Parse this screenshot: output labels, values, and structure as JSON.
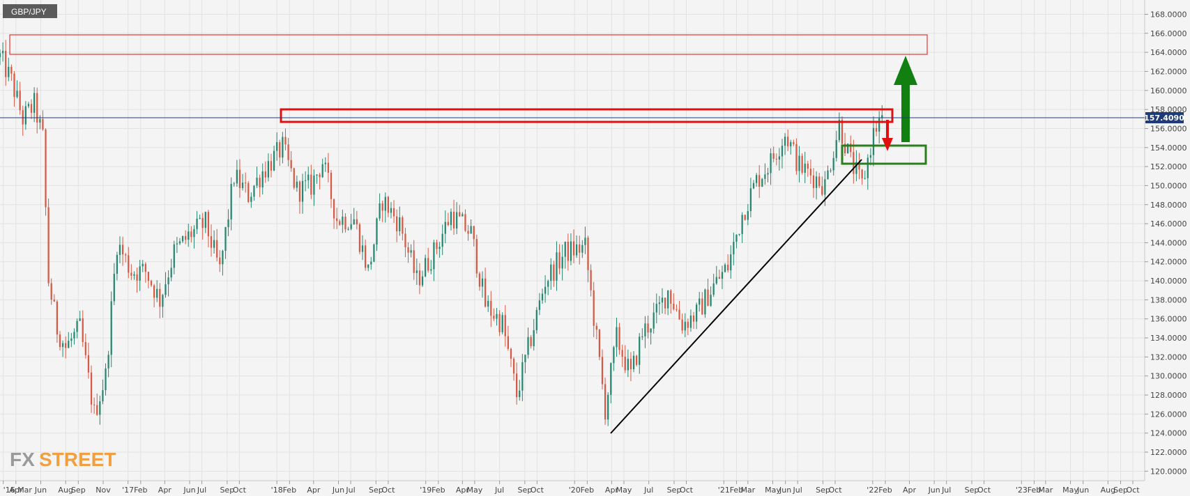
{
  "symbol_label": "GBP/JPY",
  "logo": {
    "fx": "FX",
    "street": "STREET"
  },
  "price_tag": "157.4090",
  "colors": {
    "up": "#26866f",
    "down": "#d45a45",
    "bg": "#f4f4f4",
    "grid": "#e2e2e2",
    "resistance": "#e01010",
    "support": "#2a7e1e",
    "arrow_up": "#128010",
    "arrow_down": "#e01010",
    "trendline": "#000000",
    "price_line": "#1f3b7a"
  },
  "chart_data": {
    "type": "candlestick",
    "y_axis": {
      "side": "right",
      "range": [
        119.0,
        169.5
      ],
      "ticks": [
        120,
        122,
        124,
        126,
        128,
        130,
        132,
        134,
        136,
        138,
        140,
        142,
        144,
        146,
        148,
        150,
        152,
        154,
        156,
        158,
        160,
        162,
        164,
        166,
        168
      ],
      "tick_format": "0.0000"
    },
    "x_axis": {
      "range": [
        "2016-02-22",
        "2023-10-30"
      ],
      "ticks": [
        {
          "date": "2016-03-01",
          "label": "'16 Mar"
        },
        {
          "date": "2016-04-01",
          "label": "Apr"
        },
        {
          "date": "2016-06-01",
          "label": "Jun"
        },
        {
          "date": "2016-08-01",
          "label": "Aug"
        },
        {
          "date": "2016-09-01",
          "label": "Sep"
        },
        {
          "date": "2016-11-01",
          "label": "Nov"
        },
        {
          "date": "2017-01-01",
          "label": "'17"
        },
        {
          "date": "2017-02-01",
          "label": "Feb"
        },
        {
          "date": "2017-04-01",
          "label": "Apr"
        },
        {
          "date": "2017-06-01",
          "label": "Jun"
        },
        {
          "date": "2017-07-01",
          "label": "Jul"
        },
        {
          "date": "2017-09-01",
          "label": "Sep"
        },
        {
          "date": "2017-10-01",
          "label": "Oct"
        },
        {
          "date": "2018-01-01",
          "label": "'18"
        },
        {
          "date": "2018-02-01",
          "label": "Feb"
        },
        {
          "date": "2018-04-01",
          "label": "Apr"
        },
        {
          "date": "2018-06-01",
          "label": "Jun"
        },
        {
          "date": "2018-07-01",
          "label": "Jul"
        },
        {
          "date": "2018-09-01",
          "label": "Sep"
        },
        {
          "date": "2018-10-01",
          "label": "Oct"
        },
        {
          "date": "2019-01-01",
          "label": "'19"
        },
        {
          "date": "2019-02-01",
          "label": "Feb"
        },
        {
          "date": "2019-04-01",
          "label": "Apr"
        },
        {
          "date": "2019-05-01",
          "label": "May"
        },
        {
          "date": "2019-07-01",
          "label": "Jul"
        },
        {
          "date": "2019-09-01",
          "label": "Sep"
        },
        {
          "date": "2019-10-01",
          "label": "Oct"
        },
        {
          "date": "2020-01-01",
          "label": "'20"
        },
        {
          "date": "2020-02-01",
          "label": "Feb"
        },
        {
          "date": "2020-04-01",
          "label": "Apr"
        },
        {
          "date": "2020-05-01",
          "label": "May"
        },
        {
          "date": "2020-07-01",
          "label": "Jul"
        },
        {
          "date": "2020-09-01",
          "label": "Sep"
        },
        {
          "date": "2020-10-01",
          "label": "Oct"
        },
        {
          "date": "2021-01-01",
          "label": "'21"
        },
        {
          "date": "2021-02-01",
          "label": "Feb"
        },
        {
          "date": "2021-03-01",
          "label": "Mar"
        },
        {
          "date": "2021-05-01",
          "label": "May"
        },
        {
          "date": "2021-06-01",
          "label": "Jun"
        },
        {
          "date": "2021-07-01",
          "label": "Jul"
        },
        {
          "date": "2021-09-01",
          "label": "Sep"
        },
        {
          "date": "2021-10-01",
          "label": "Oct"
        },
        {
          "date": "2022-01-01",
          "label": "'22"
        },
        {
          "date": "2022-02-01",
          "label": "Feb"
        },
        {
          "date": "2022-04-01",
          "label": "Apr"
        },
        {
          "date": "2022-06-01",
          "label": "Jun"
        },
        {
          "date": "2022-07-01",
          "label": "Jul"
        },
        {
          "date": "2022-09-01",
          "label": "Sep"
        },
        {
          "date": "2022-10-01",
          "label": "Oct"
        },
        {
          "date": "2023-01-01",
          "label": "'23"
        },
        {
          "date": "2023-02-01",
          "label": "Feb"
        },
        {
          "date": "2023-03-01",
          "label": "Mar"
        },
        {
          "date": "2023-05-01",
          "label": "May"
        },
        {
          "date": "2023-06-01",
          "label": "Jun"
        },
        {
          "date": "2023-08-01",
          "label": "Aug"
        },
        {
          "date": "2023-09-01",
          "label": "Sep"
        },
        {
          "date": "2023-10-01",
          "label": "Oct"
        }
      ]
    },
    "current_price": 157.409,
    "approx_weekly_closes": [
      [
        "2016-02-22",
        163.5
      ],
      [
        "2016-03-21",
        161.0
      ],
      [
        "2016-04-18",
        157.0
      ],
      [
        "2016-05-16",
        158.5
      ],
      [
        "2016-06-06",
        155.0
      ],
      [
        "2016-06-20",
        140.0
      ],
      [
        "2016-07-11",
        135.0
      ],
      [
        "2016-08-01",
        133.0
      ],
      [
        "2016-09-05",
        135.0
      ],
      [
        "2016-10-10",
        126.0
      ],
      [
        "2016-11-07",
        130.0
      ],
      [
        "2016-12-05",
        144.0
      ],
      [
        "2017-01-09",
        141.0
      ],
      [
        "2017-02-13",
        141.0
      ],
      [
        "2017-03-20",
        138.0
      ],
      [
        "2017-04-24",
        143.0
      ],
      [
        "2017-06-05",
        145.0
      ],
      [
        "2017-07-10",
        146.0
      ],
      [
        "2017-08-14",
        141.0
      ],
      [
        "2017-09-18",
        151.0
      ],
      [
        "2017-10-23",
        149.0
      ],
      [
        "2017-11-27",
        151.5
      ],
      [
        "2018-01-15",
        154.0
      ],
      [
        "2018-02-19",
        149.5
      ],
      [
        "2018-03-26",
        150.0
      ],
      [
        "2018-04-23",
        152.5
      ],
      [
        "2018-05-28",
        146.5
      ],
      [
        "2018-07-09",
        146.5
      ],
      [
        "2018-08-13",
        141.0
      ],
      [
        "2018-09-17",
        148.5
      ],
      [
        "2018-10-29",
        146.0
      ],
      [
        "2018-12-10",
        140.0
      ],
      [
        "2019-01-21",
        143.0
      ],
      [
        "2019-03-04",
        147.0
      ],
      [
        "2019-04-22",
        145.0
      ],
      [
        "2019-05-27",
        137.5
      ],
      [
        "2019-07-08",
        135.5
      ],
      [
        "2019-08-12",
        128.0
      ],
      [
        "2019-09-16",
        134.0
      ],
      [
        "2019-10-21",
        140.0
      ],
      [
        "2019-12-09",
        143.0
      ],
      [
        "2020-01-27",
        143.5
      ],
      [
        "2020-03-16",
        126.5
      ],
      [
        "2020-04-13",
        134.0
      ],
      [
        "2020-05-18",
        130.0
      ],
      [
        "2020-06-15",
        134.5
      ],
      [
        "2020-07-20",
        136.5
      ],
      [
        "2020-08-17",
        139.0
      ],
      [
        "2020-09-21",
        135.5
      ],
      [
        "2020-10-26",
        136.5
      ],
      [
        "2020-12-07",
        139.5
      ],
      [
        "2021-01-11",
        141.5
      ],
      [
        "2021-02-15",
        147.0
      ],
      [
        "2021-03-22",
        150.5
      ],
      [
        "2021-04-26",
        152.5
      ],
      [
        "2021-06-01",
        155.5
      ],
      [
        "2021-07-05",
        152.0
      ],
      [
        "2021-08-09",
        151.0
      ],
      [
        "2021-09-06",
        150.0
      ],
      [
        "2021-10-11",
        156.5
      ],
      [
        "2021-11-08",
        152.5
      ],
      [
        "2021-12-06",
        150.0
      ],
      [
        "2022-01-03",
        155.5
      ],
      [
        "2022-01-24",
        157.4
      ]
    ]
  }
}
